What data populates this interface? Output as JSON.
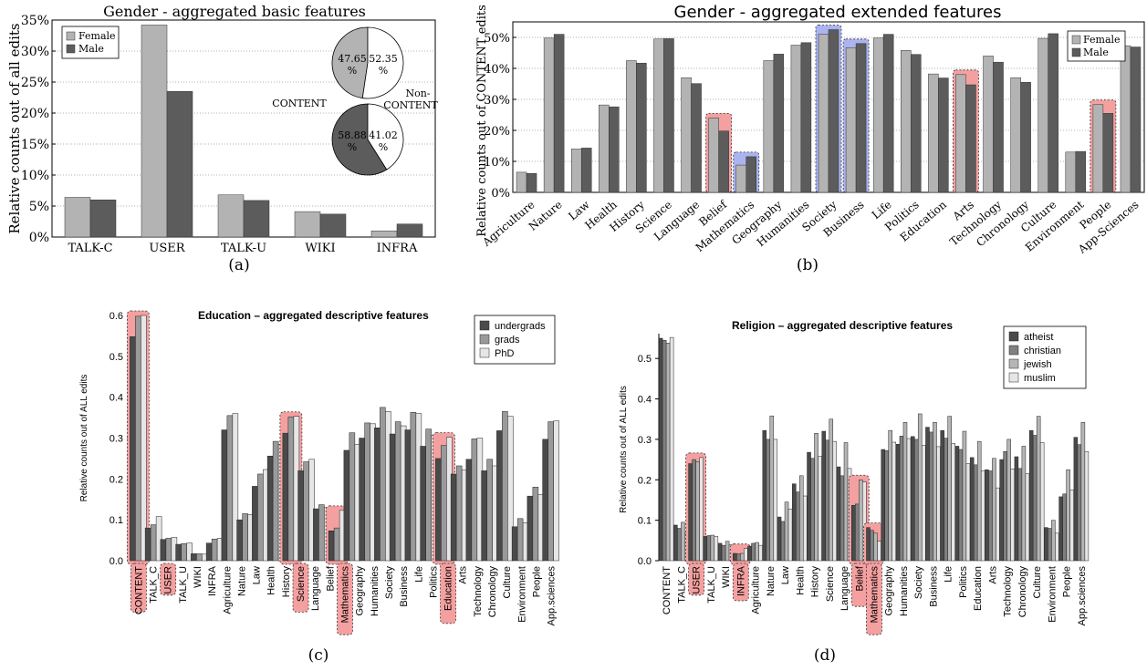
{
  "colors": {
    "light": "#b3b3b3",
    "dark": "#5c5c5c",
    "red_highlight": "#f4a0a0",
    "blue_highlight": "#aab4f0",
    "c_undergrads": "#4a4a4a",
    "c_grads": "#9a9a9a",
    "c_phd": "#e6e6e6",
    "c_atheist": "#4a4a4a",
    "c_christian": "#808080",
    "c_jewish": "#b5b5b5",
    "c_muslim": "#e6e6e6"
  },
  "panel_labels": {
    "a": "(a)",
    "b": "(b)",
    "c": "(c)",
    "d": "(d)"
  },
  "chart_data": [
    {
      "id": "a",
      "type": "bar",
      "title": "Gender - aggregated basic features",
      "ylabel": "Relative counts out of all edits",
      "ylim": [
        0,
        35
      ],
      "yticks": [
        "0%",
        "5%",
        "10%",
        "15%",
        "20%",
        "25%",
        "30%",
        "35%"
      ],
      "categories": [
        "TALK-C",
        "USER",
        "TALK-U",
        "WIKI",
        "INFRA"
      ],
      "series": [
        {
          "name": "Female",
          "values": [
            6.4,
            34.2,
            6.8,
            4.1,
            1.0
          ]
        },
        {
          "name": "Male",
          "values": [
            6.0,
            23.5,
            5.9,
            3.7,
            2.1
          ]
        }
      ],
      "legend": "top-left",
      "pies": [
        {
          "label": "CONTENT",
          "female_label": "47.65\n%",
          "male_label": "52.35\n%",
          "values": [
            47.65,
            52.35
          ]
        },
        {
          "label": "Non-\nCONTENT",
          "female_label": "58.88\n%",
          "male_label": "41.02\n%",
          "values": [
            58.88,
            41.02
          ]
        }
      ]
    },
    {
      "id": "b",
      "type": "bar",
      "title": "Gender - aggregated extended features",
      "ylabel": "Relative counts out of CONTENT edits",
      "ylim": [
        0,
        55
      ],
      "yticks": [
        "0%",
        "10%",
        "20%",
        "30%",
        "40%",
        "50%"
      ],
      "categories": [
        "Agriculture",
        "Nature",
        "Law",
        "Health",
        "History",
        "Science",
        "Language",
        "Belief",
        "Mathematics",
        "Geography",
        "Humanities",
        "Society",
        "Business",
        "Life",
        "Politics",
        "Education",
        "Arts",
        "Technology",
        "Chronology",
        "Culture",
        "Environment",
        "People",
        "App-Sciences"
      ],
      "series": [
        {
          "name": "Female",
          "values": [
            6.5,
            49.8,
            14.0,
            28.2,
            42.5,
            49.5,
            37.0,
            24.0,
            8.8,
            42.5,
            47.5,
            51.0,
            46.7,
            49.8,
            45.8,
            38.2,
            38.0,
            44.0,
            37.0,
            49.7,
            13.0,
            28.3,
            47.3
          ]
        },
        {
          "name": "Male",
          "values": [
            6.1,
            51.0,
            14.3,
            27.6,
            41.7,
            49.6,
            35.1,
            19.8,
            11.5,
            44.6,
            48.3,
            52.5,
            48.0,
            51.0,
            44.5,
            36.9,
            34.7,
            42.0,
            35.5,
            51.2,
            13.2,
            25.5,
            46.9
          ]
        }
      ],
      "highlights": [
        {
          "category": "Belief",
          "color": "red"
        },
        {
          "category": "Mathematics",
          "color": "blue"
        },
        {
          "category": "Society",
          "color": "blue"
        },
        {
          "category": "Business",
          "color": "blue"
        },
        {
          "category": "Arts",
          "color": "red"
        },
        {
          "category": "People",
          "color": "red"
        }
      ],
      "legend": "top-right"
    },
    {
      "id": "c",
      "type": "bar",
      "title": "Education – aggregated descriptive features",
      "ylabel": "Relative counts out of ALL edits",
      "ylim": [
        0,
        0.6
      ],
      "yticks": [
        "0.0",
        "0.1",
        "0.2",
        "0.3",
        "0.4",
        "0.5",
        "0.6"
      ],
      "categories": [
        "CONTENT",
        "TALK_C",
        "TALK_U",
        "WIKI",
        "INFRA",
        "Agriculture",
        "Nature",
        "Law",
        "Health",
        "History",
        "Science",
        "Language",
        "Belief",
        "Mathematics",
        "Geography",
        "Humanities",
        "Society",
        "Business",
        "Life",
        "Politics",
        "Education",
        "Arts",
        "Technology",
        "Chronology",
        "Culture",
        "Environment",
        "People",
        "App.sciences"
      ],
      "series": [
        {
          "name": "undergrads",
          "values": [
            0.548,
            0.08,
            0.052,
            0.04,
            0.017,
            0.043,
            0.32,
            0.1,
            0.182,
            0.256,
            0.312,
            0.22,
            0.127,
            0.073,
            0.27,
            0.3,
            0.325,
            0.31,
            0.32,
            0.28,
            0.25,
            0.212,
            0.248,
            0.22,
            0.318,
            0.083,
            0.158,
            0.297
          ]
        },
        {
          "name": "grads",
          "values": [
            0.598,
            0.088,
            0.055,
            0.042,
            0.017,
            0.053,
            0.355,
            0.115,
            0.212,
            0.292,
            0.352,
            0.242,
            0.137,
            0.08,
            0.313,
            0.337,
            0.375,
            0.34,
            0.363,
            0.322,
            0.282,
            0.232,
            0.298,
            0.248,
            0.365,
            0.103,
            0.18,
            0.34
          ]
        },
        {
          "name": "PhD",
          "values": [
            0.6,
            0.108,
            0.057,
            0.043,
            0.016,
            0.055,
            0.36,
            0.113,
            0.223,
            0.285,
            0.353,
            0.248,
            0.13,
            0.123,
            0.285,
            0.335,
            0.365,
            0.33,
            0.36,
            0.307,
            0.302,
            0.222,
            0.3,
            0.232,
            0.353,
            0.093,
            0.162,
            0.342
          ]
        }
      ],
      "highlights": [
        "CONTENT",
        "USER",
        "Science",
        "Mathematics",
        "Education"
      ],
      "extra_labels": [
        {
          "text": "USER",
          "after": "TALK_C"
        }
      ],
      "legend": "top-right"
    },
    {
      "id": "d",
      "type": "bar",
      "title": "Religion – aggregated descriptive features",
      "ylabel": "Relative counts out of ALL edits",
      "ylim": [
        0,
        0.55
      ],
      "yticks": [
        "0.0",
        "0.1",
        "0.2",
        "0.3",
        "0.4",
        "0.5"
      ],
      "categories": [
        "CONTENT",
        "TALK_C",
        "USER",
        "TALK_U",
        "WIKI",
        "INFRA",
        "Agriculture",
        "Nature",
        "Law",
        "Health",
        "History",
        "Science",
        "Language",
        "Belief",
        "Mathematics",
        "Geography",
        "Humanities",
        "Society",
        "Business",
        "Life",
        "Politics",
        "Education",
        "Arts",
        "Technology",
        "Chronology",
        "Culture",
        "Environment",
        "People",
        "App.sciences"
      ],
      "series": [
        {
          "name": "atheist",
          "values": [
            0.55,
            0.088,
            0.24,
            0.06,
            0.043,
            0.018,
            0.036,
            0.322,
            0.108,
            0.19,
            0.268,
            0.32,
            0.232,
            0.137,
            0.082,
            0.275,
            0.288,
            0.307,
            0.33,
            0.322,
            0.283,
            0.255,
            0.225,
            0.25,
            0.257,
            0.322,
            0.082,
            0.158,
            0.305
          ]
        },
        {
          "name": "christian",
          "values": [
            0.545,
            0.08,
            0.25,
            0.062,
            0.038,
            0.017,
            0.043,
            0.3,
            0.097,
            0.17,
            0.253,
            0.298,
            0.21,
            0.14,
            0.075,
            0.272,
            0.308,
            0.3,
            0.318,
            0.303,
            0.275,
            0.237,
            0.222,
            0.27,
            0.228,
            0.31,
            0.08,
            0.165,
            0.287
          ]
        },
        {
          "name": "jewish",
          "values": [
            0.538,
            0.095,
            0.245,
            0.063,
            0.048,
            0.018,
            0.045,
            0.358,
            0.145,
            0.21,
            0.315,
            0.35,
            0.292,
            0.2,
            0.068,
            0.322,
            0.342,
            0.363,
            0.342,
            0.357,
            0.32,
            0.295,
            0.253,
            0.3,
            0.283,
            0.357,
            0.1,
            0.225,
            0.342
          ]
        },
        {
          "name": "muslim",
          "values": [
            0.552,
            0.068,
            0.255,
            0.06,
            0.04,
            0.03,
            0.038,
            0.3,
            0.128,
            0.16,
            0.258,
            0.295,
            0.228,
            0.195,
            0.048,
            0.293,
            0.302,
            0.285,
            0.282,
            0.29,
            0.24,
            0.222,
            0.18,
            0.227,
            0.215,
            0.292,
            0.068,
            0.175,
            0.27
          ]
        }
      ],
      "highlights": [
        "USER",
        "INFRA",
        "Belief",
        "Mathematics"
      ],
      "legend": "top-right"
    }
  ]
}
